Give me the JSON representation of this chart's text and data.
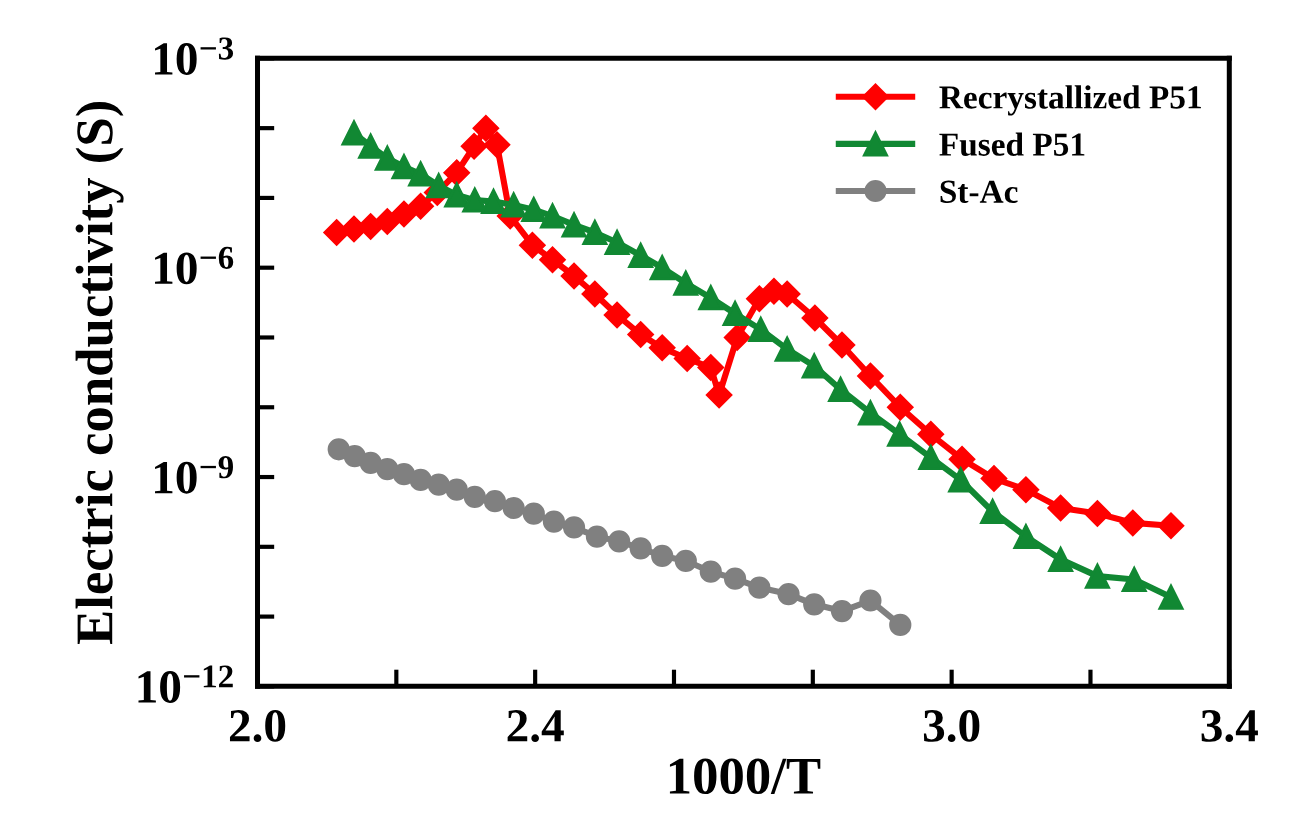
{
  "chart_data": {
    "type": "line",
    "xlabel": "1000/T",
    "ylabel": "Electric conductivity (S)",
    "log": "y",
    "xlim": [
      2.0,
      3.4
    ],
    "ylim": [
      1e-12,
      0.001
    ],
    "xticks": [
      {
        "value": 2.0,
        "label": "2.0"
      },
      {
        "value": 2.2,
        "label": null
      },
      2.4,
      {
        "value": 2.6,
        "label": null
      },
      {
        "value": 2.8,
        "label": null
      },
      {
        "value": 3.0,
        "label": "3.0"
      },
      {
        "value": 3.2,
        "label": null
      },
      3.4
    ],
    "yticks": [
      {
        "value": 1e-12,
        "label": "10$^{−12}$"
      },
      {
        "value": 1e-11,
        "label": null
      },
      {
        "value": 1e-10,
        "label": null
      },
      {
        "value": 1e-09,
        "label": "10$^{−9}$"
      },
      {
        "value": 1e-08,
        "label": null
      },
      {
        "value": 1e-07,
        "label": null
      },
      {
        "value": 1e-06,
        "label": "10$^{−6}$"
      },
      {
        "value": 1e-05,
        "label": null
      },
      {
        "value": 0.0001,
        "label": null
      },
      {
        "value": 0.001,
        "label": "10$^{−3}$"
      }
    ],
    "grid": false,
    "legend": "top right",
    "line_style": "solid",
    "series": [
      {
        "name": "Recrystallized P51",
        "color": "#ff0000",
        "marker": "diamond",
        "x": [
          2.114,
          2.139,
          2.163,
          2.187,
          2.211,
          2.235,
          2.259,
          2.287,
          2.312,
          2.329,
          2.345,
          2.364,
          2.396,
          2.425,
          2.456,
          2.486,
          2.518,
          2.552,
          2.583,
          2.619,
          2.653,
          2.665,
          2.691,
          2.723,
          2.744,
          2.763,
          2.803,
          2.842,
          2.883,
          2.926,
          2.97,
          3.015,
          3.061,
          3.107,
          3.157,
          3.21,
          3.261,
          3.316
        ],
        "values": [
          3.2e-06,
          3.6e-06,
          3.9e-06,
          4.6e-06,
          5.9e-06,
          7.6e-06,
          1.2e-05,
          2.3e-05,
          5.5e-05,
          0.0001,
          5.8e-05,
          5.5e-06,
          2.1e-06,
          1.3e-06,
          7.6e-07,
          4.2e-07,
          2.1e-07,
          1.1e-07,
          7.1e-08,
          5e-08,
          3.7e-08,
          1.5e-08,
          1e-07,
          3.6e-07,
          4.6e-07,
          4.2e-07,
          1.9e-07,
          7.8e-08,
          2.8e-08,
          1e-08,
          4.1e-09,
          1.8e-09,
          9.5e-10,
          6.6e-10,
          3.6e-10,
          3e-10,
          2.2e-10,
          2e-10
        ]
      },
      {
        "name": "Fused P51",
        "color": "#118833",
        "marker": "triangle",
        "x": [
          2.139,
          2.163,
          2.187,
          2.211,
          2.235,
          2.261,
          2.287,
          2.313,
          2.34,
          2.369,
          2.398,
          2.425,
          2.456,
          2.486,
          2.518,
          2.552,
          2.583,
          2.617,
          2.653,
          2.688,
          2.725,
          2.763,
          2.802,
          2.84,
          2.883,
          2.925,
          2.97,
          3.013,
          3.059,
          3.107,
          3.157,
          3.21,
          3.263,
          3.316
        ],
        "values": [
          8.5e-05,
          5.5e-05,
          3.7e-05,
          2.8e-05,
          2.2e-05,
          1.5e-05,
          1.1e-05,
          9.3e-06,
          8.9e-06,
          7.9e-06,
          6.8e-06,
          5.5e-06,
          4.1e-06,
          3.2e-06,
          2.3e-06,
          1.5e-06,
          1e-06,
          6e-07,
          3.7e-07,
          2.2e-07,
          1.3e-07,
          6.8e-08,
          3.9e-08,
          1.8e-08,
          8.3e-09,
          4.1e-09,
          1.9e-09,
          9.1e-10,
          3.2e-10,
          1.4e-10,
          6.6e-11,
          3.8e-11,
          3.4e-11,
          1.9e-11
        ]
      },
      {
        "name": "St-Ac",
        "color": "#808080",
        "marker": "circle",
        "x": [
          2.117,
          2.14,
          2.163,
          2.187,
          2.211,
          2.235,
          2.261,
          2.287,
          2.313,
          2.342,
          2.369,
          2.398,
          2.427,
          2.456,
          2.489,
          2.521,
          2.552,
          2.583,
          2.617,
          2.653,
          2.688,
          2.723,
          2.765,
          2.802,
          2.842,
          2.883,
          2.926
        ],
        "values": [
          2.5e-09,
          2e-09,
          1.6e-09,
          1.3e-09,
          1.1e-09,
          9.1e-10,
          7.8e-10,
          6.6e-10,
          5.2e-10,
          4.5e-10,
          3.6e-10,
          3e-10,
          2.3e-10,
          1.9e-10,
          1.4e-10,
          1.2e-10,
          9.5e-11,
          7.4e-11,
          6.3e-11,
          4.4e-11,
          3.5e-11,
          2.6e-11,
          2.1e-11,
          1.5e-11,
          1.2e-11,
          1.7e-11,
          7.6e-12
        ]
      }
    ]
  }
}
